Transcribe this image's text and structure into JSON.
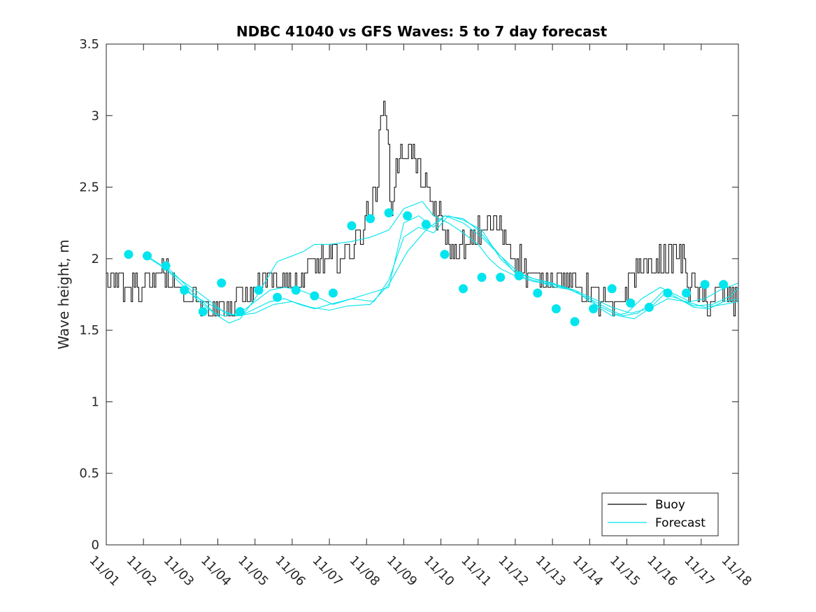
{
  "chart_data": {
    "type": "line",
    "title": "NDBC 41040 vs GFS Waves: 5 to 7 day forecast",
    "xlabel": "",
    "ylabel": "Wave height, m",
    "xlim": [
      0,
      17
    ],
    "ylim": [
      0,
      3.5
    ],
    "x_tick_values": [
      0,
      1,
      2,
      3,
      4,
      5,
      6,
      7,
      8,
      9,
      10,
      11,
      12,
      13,
      14,
      15,
      16,
      17
    ],
    "x_tick_labels": [
      "11/01",
      "11/02",
      "11/03",
      "11/04",
      "11/05",
      "11/06",
      "11/07",
      "11/08",
      "11/09",
      "11/10",
      "11/11",
      "11/12",
      "11/13",
      "11/14",
      "11/15",
      "11/16",
      "11/17",
      "11/18"
    ],
    "y_tick_values": [
      0,
      0.5,
      1,
      1.5,
      2,
      2.5,
      3,
      3.5
    ],
    "y_tick_labels": [
      "0",
      "0.5",
      "1",
      "1.5",
      "2",
      "2.5",
      "3",
      "3.5"
    ],
    "legend": {
      "placement": "bottom-right",
      "entries": [
        {
          "label": "Buoy",
          "color": "#000000"
        },
        {
          "label": "Forecast",
          "color": "#00e5ee"
        }
      ]
    },
    "colors": {
      "buoy": "#000000",
      "forecast": "#00e5ee",
      "axis": "#262626"
    },
    "buoy": {
      "name": "Buoy",
      "knots_x": [
        0,
        0.3,
        0.6,
        0.9,
        1.2,
        1.5,
        1.8,
        2.0,
        2.2,
        2.5,
        2.8,
        3.0,
        3.3,
        3.6,
        4.0,
        4.3,
        4.6,
        5.0,
        5.3,
        5.6,
        5.9,
        6.2,
        6.5,
        6.8,
        7.0,
        7.2,
        7.4,
        7.6,
        7.8,
        8.0,
        8.2,
        8.5,
        8.8,
        9.0,
        9.2,
        9.5,
        9.8,
        10.0,
        10.3,
        10.6,
        10.9,
        11.2,
        11.5,
        11.8,
        12.1,
        12.4,
        12.7,
        13.0,
        13.3,
        13.6,
        13.9,
        14.2,
        14.5,
        14.8,
        15.1,
        15.4,
        15.7,
        16.0,
        16.3,
        16.6,
        16.9,
        17.0
      ],
      "knots_y": [
        1.8,
        1.85,
        1.8,
        1.8,
        1.85,
        1.9,
        1.85,
        1.75,
        1.75,
        1.7,
        1.65,
        1.7,
        1.65,
        1.7,
        1.8,
        1.9,
        1.85,
        1.8,
        1.85,
        1.95,
        2.0,
        2.0,
        2.05,
        2.15,
        2.3,
        2.4,
        2.45,
        2.3,
        2.6,
        2.8,
        2.75,
        2.55,
        2.35,
        2.25,
        2.1,
        2.05,
        2.1,
        2.2,
        2.25,
        2.2,
        2.05,
        1.95,
        1.85,
        1.85,
        1.9,
        1.85,
        1.8,
        1.75,
        1.7,
        1.6,
        1.75,
        1.9,
        1.95,
        1.95,
        2.0,
        2.05,
        1.8,
        1.75,
        1.7,
        1.75,
        1.7,
        1.72
      ],
      "spike_x": 7.45,
      "spike_y": 3.1,
      "step_hours": 1,
      "jitter_amplitude": 0.1,
      "seed": 41040
    },
    "forecast_markers": {
      "name": "Forecast",
      "x": [
        0.6,
        1.1,
        1.6,
        2.1,
        2.6,
        3.1,
        3.6,
        4.1,
        4.6,
        5.1,
        5.6,
        6.1,
        6.6,
        7.1,
        7.6,
        8.1,
        8.6,
        9.1,
        9.6,
        10.1,
        10.6,
        11.1,
        11.6,
        12.1,
        12.6,
        13.1,
        13.6,
        14.1,
        14.6,
        15.1,
        15.6,
        16.1,
        16.6
      ],
      "y": [
        2.03,
        2.02,
        1.95,
        1.78,
        1.63,
        1.83,
        1.63,
        1.78,
        1.73,
        1.78,
        1.74,
        1.76,
        2.23,
        2.28,
        2.32,
        2.3,
        2.24,
        2.03,
        1.79,
        1.87,
        1.87,
        1.88,
        1.76,
        1.65,
        1.56,
        1.65,
        1.79,
        1.69,
        1.66,
        1.76,
        1.76,
        1.82,
        1.82
      ]
    },
    "forecast_traces": [
      {
        "name": "Forecast",
        "x": [
          1.1,
          1.5,
          2.0,
          2.5,
          3.0,
          3.3,
          3.6,
          4.0,
          4.3,
          4.6,
          5.0,
          5.3,
          5.6,
          6.0,
          6.6,
          7.1,
          7.6,
          8.0,
          8.5,
          8.8,
          9.2,
          9.6,
          10.0,
          10.3,
          10.6,
          11.0,
          11.5,
          12.0,
          12.5,
          13.0,
          13.3,
          13.6,
          14.0,
          14.4,
          14.9,
          15.3,
          15.7,
          16.1,
          16.5,
          17.0
        ],
        "y": [
          2.02,
          1.95,
          1.85,
          1.72,
          1.6,
          1.55,
          1.58,
          1.72,
          1.85,
          1.98,
          2.02,
          2.05,
          2.1,
          2.1,
          2.12,
          2.15,
          2.2,
          2.35,
          2.4,
          2.3,
          2.25,
          2.18,
          2.1,
          2.0,
          1.93,
          1.88,
          1.84,
          1.82,
          1.78,
          1.72,
          1.65,
          1.6,
          1.62,
          1.72,
          1.8,
          1.75,
          1.7,
          1.72,
          1.78,
          1.83
        ]
      },
      {
        "name": "Forecast",
        "x": [
          1.1,
          1.6,
          2.1,
          2.5,
          2.9,
          3.2,
          3.6,
          4.0,
          4.4,
          4.8,
          5.2,
          5.6,
          6.1,
          6.6,
          7.1,
          7.6,
          8.0,
          8.4,
          8.8,
          9.1,
          9.6,
          10.0,
          10.5,
          11.0,
          11.5,
          12.0,
          12.5,
          13.0,
          13.5,
          13.9,
          14.3,
          14.7,
          15.0,
          15.4,
          15.8,
          16.3,
          16.8,
          17.0
        ],
        "y": [
          2.01,
          1.93,
          1.8,
          1.7,
          1.62,
          1.6,
          1.62,
          1.7,
          1.78,
          1.8,
          1.78,
          1.74,
          1.68,
          1.72,
          1.76,
          1.8,
          2.25,
          2.3,
          2.22,
          2.3,
          2.28,
          2.2,
          2.05,
          1.9,
          1.86,
          1.83,
          1.78,
          1.72,
          1.65,
          1.6,
          1.62,
          1.7,
          1.78,
          1.72,
          1.67,
          1.68,
          1.74,
          1.8
        ]
      },
      {
        "name": "Forecast",
        "x": [
          1.6,
          2.0,
          2.4,
          2.8,
          3.2,
          3.6,
          4.0,
          4.4,
          4.8,
          5.2,
          5.6,
          6.0,
          6.6,
          7.2,
          7.6,
          8.0,
          8.4,
          8.8,
          9.2,
          9.6,
          10.1,
          10.6,
          11.1,
          11.6,
          12.1,
          12.6,
          13.0,
          13.4,
          13.8,
          14.2,
          14.6,
          15.0,
          15.4,
          15.8,
          16.2,
          16.6,
          17.0
        ],
        "y": [
          1.95,
          1.85,
          1.78,
          1.7,
          1.62,
          1.6,
          1.65,
          1.7,
          1.72,
          1.68,
          1.65,
          1.68,
          1.72,
          1.7,
          1.85,
          2.15,
          2.22,
          2.18,
          2.3,
          2.27,
          2.2,
          2.0,
          1.88,
          1.84,
          1.8,
          1.78,
          1.7,
          1.65,
          1.6,
          1.58,
          1.65,
          1.75,
          1.72,
          1.66,
          1.65,
          1.7,
          1.72
        ]
      },
      {
        "name": "Forecast",
        "x": [
          2.1,
          2.5,
          3.0,
          3.5,
          4.0,
          4.5,
          5.0,
          5.5,
          6.0,
          6.5,
          7.1,
          7.6,
          8.1,
          8.6,
          9.1,
          9.6,
          10.1,
          10.6,
          11.1,
          11.6,
          12.1,
          12.6,
          13.1,
          13.6,
          14.1,
          14.6,
          15.1,
          15.6,
          16.1,
          16.6,
          17.0
        ],
        "y": [
          1.78,
          1.72,
          1.65,
          1.6,
          1.62,
          1.68,
          1.7,
          1.66,
          1.64,
          1.67,
          1.68,
          1.82,
          2.05,
          2.2,
          2.3,
          2.25,
          2.15,
          2.02,
          1.9,
          1.85,
          1.82,
          1.78,
          1.72,
          1.66,
          1.62,
          1.65,
          1.72,
          1.7,
          1.66,
          1.68,
          1.7
        ]
      }
    ]
  }
}
